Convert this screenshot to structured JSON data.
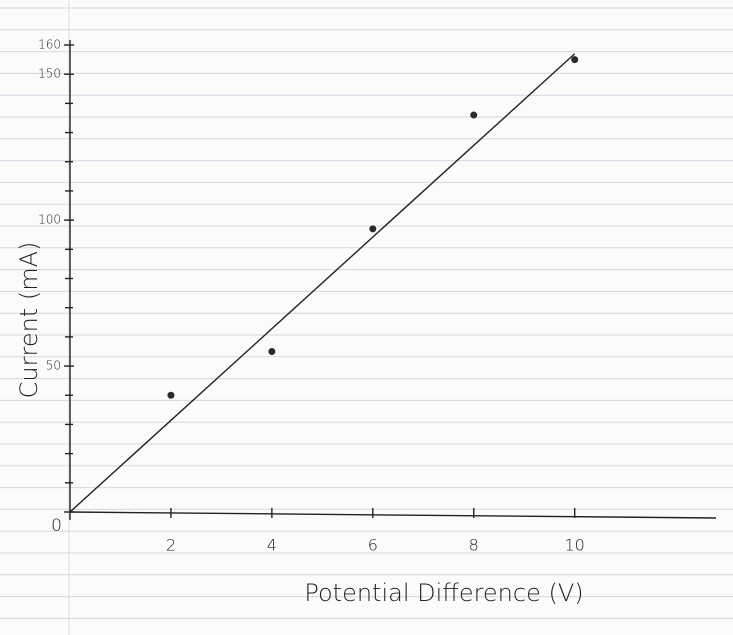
{
  "chart_data": {
    "type": "scatter",
    "x_label": "Potential Difference (V)",
    "y_label": "Current (mA)",
    "x": [
      2,
      4,
      6,
      8,
      10
    ],
    "values": [
      40,
      55,
      97,
      136,
      155
    ],
    "color": "#2a2a2a",
    "trend_line": {
      "x": [
        0,
        10
      ],
      "values": [
        0,
        157
      ]
    },
    "xlim": [
      0,
      12.8
    ],
    "ylim": [
      0,
      160
    ],
    "xticks": [
      2,
      4,
      6,
      8,
      10
    ],
    "yticks": [
      0,
      50,
      100,
      150,
      160
    ],
    "yminorticks": [
      10,
      20,
      30,
      40,
      60,
      70,
      80,
      90,
      110,
      120,
      130,
      140
    ]
  }
}
